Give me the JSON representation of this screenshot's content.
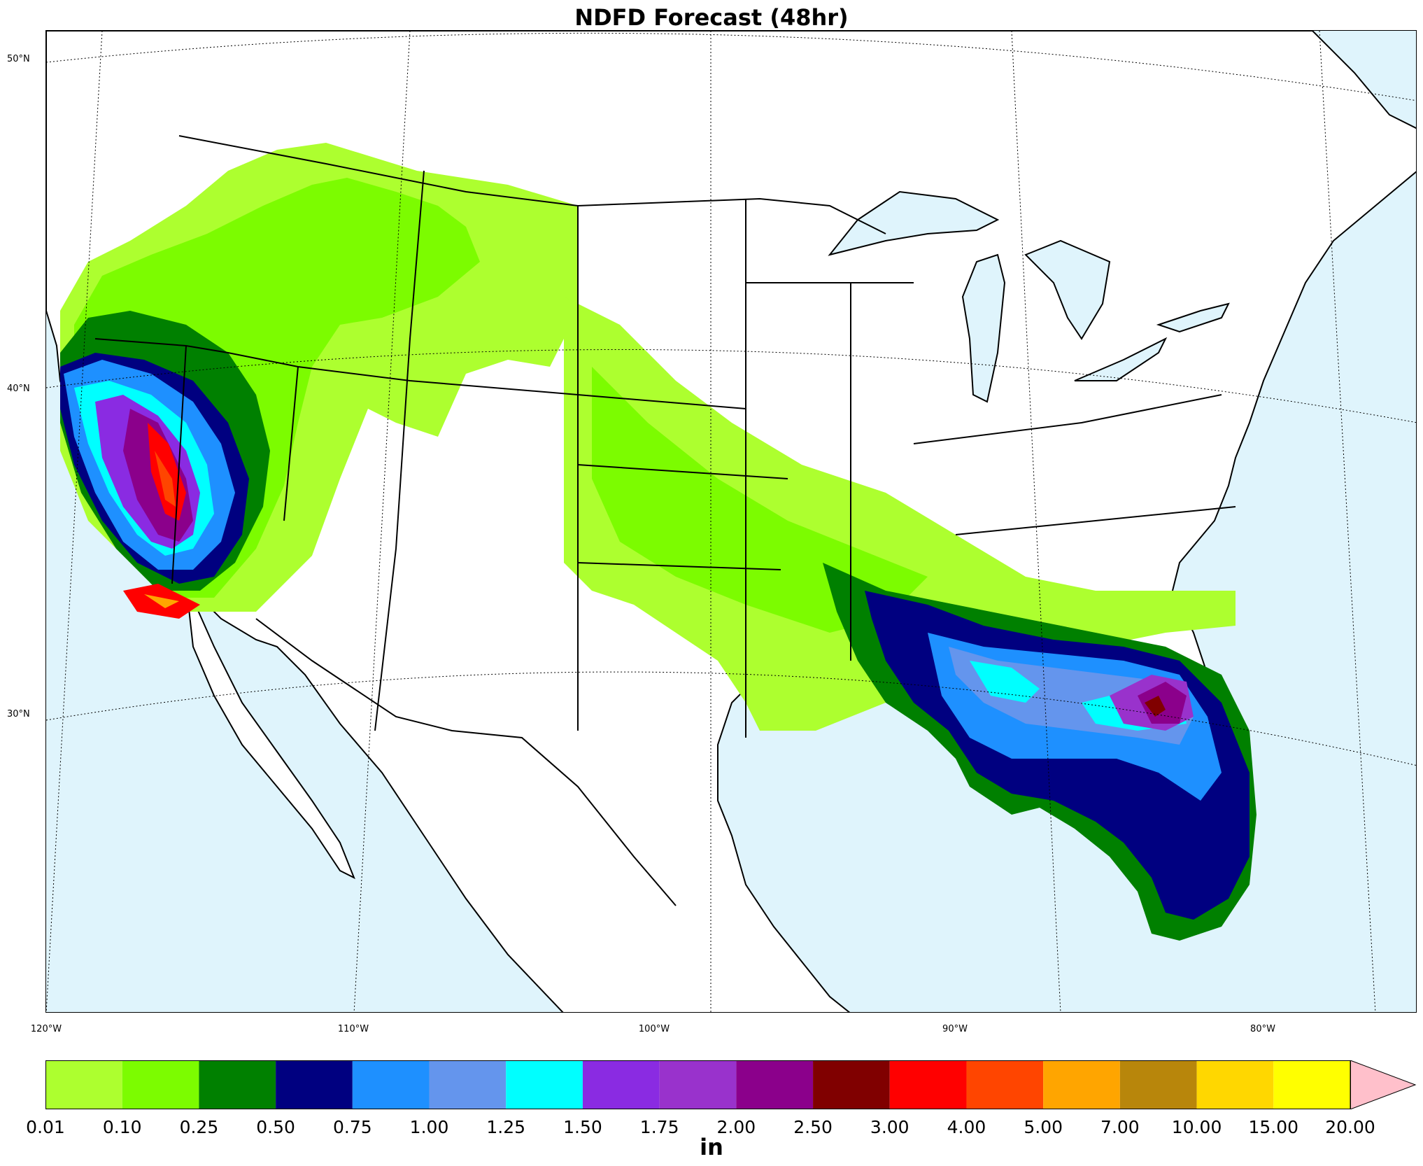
{
  "title": "NDFD Forecast (48hr)",
  "lat_labels": [
    "50°N",
    "40°N",
    "30°N"
  ],
  "lon_labels": [
    "120°W",
    "110°W",
    "100°W",
    "90°W",
    "80°W"
  ],
  "colorbar": {
    "ticks": [
      "0.01",
      "0.10",
      "0.25",
      "0.50",
      "0.75",
      "1.00",
      "1.25",
      "1.50",
      "1.75",
      "2.00",
      "2.50",
      "3.00",
      "4.00",
      "5.00",
      "7.00",
      "10.00",
      "15.00",
      "20.00"
    ],
    "colors": [
      "#adff2f",
      "#7cfc00",
      "#008000",
      "#000080",
      "#1e90ff",
      "#6495ed",
      "#00ffff",
      "#8a2be2",
      "#9932cc",
      "#8b008b",
      "#800000",
      "#ff0000",
      "#ff4500",
      "#ffa500",
      "#b8860b",
      "#ffd700",
      "#ffff00"
    ],
    "extend_color": "#ffc0cb",
    "units": "in"
  },
  "colors": {
    "ocean": "#dff4fc",
    "land": "#ffffff",
    "border": "#000000"
  }
}
